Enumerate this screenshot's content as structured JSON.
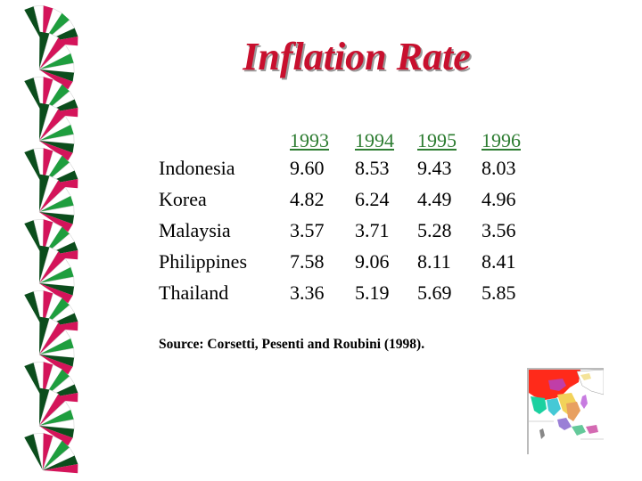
{
  "slide": {
    "title": "Inflation Rate",
    "source": "Source: Corsetti, Pesenti and Roubini (1998).",
    "title_color": "#c8102e",
    "header_color": "#2e7d32"
  },
  "table": {
    "years": [
      "1993",
      "1994",
      "1995",
      "1996"
    ],
    "rows": [
      {
        "country": "Indonesia",
        "values": [
          "9.60",
          "8.53",
          "9.43",
          "8.03"
        ]
      },
      {
        "country": "Korea",
        "values": [
          "4.82",
          "6.24",
          "4.49",
          "4.96"
        ]
      },
      {
        "country": "Malaysia",
        "values": [
          "3.57",
          "3.71",
          "5.28",
          "3.56"
        ]
      },
      {
        "country": "Philippines",
        "values": [
          "7.58",
          "9.06",
          "8.11",
          "8.41"
        ]
      },
      {
        "country": "Thailand",
        "values": [
          "3.36",
          "5.19",
          "5.69",
          "5.85"
        ]
      }
    ]
  },
  "decor": {
    "fan_icon": "striped-fan-icon",
    "map_icon": "southeast-asia-map-icon"
  }
}
